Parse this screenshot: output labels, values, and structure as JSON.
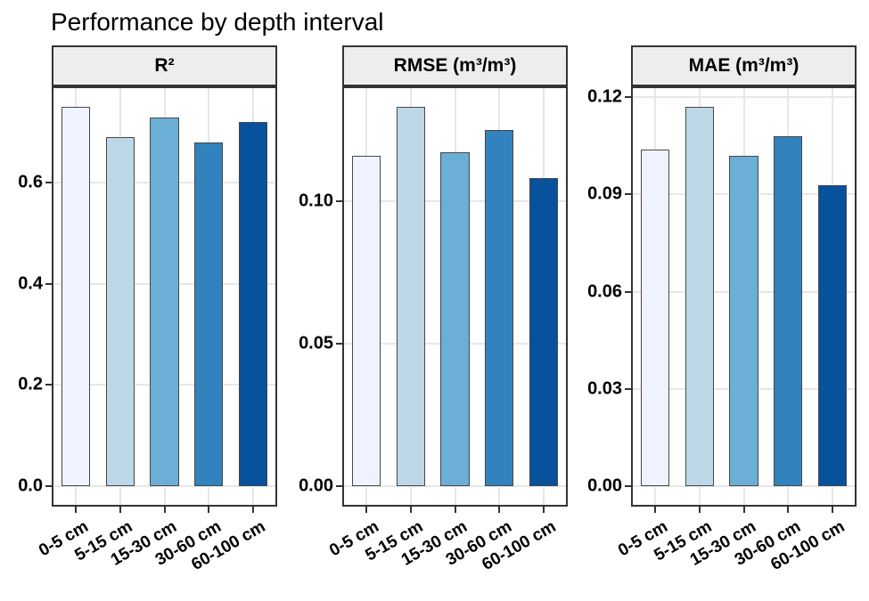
{
  "chart_data": {
    "type": "bar",
    "title": "Performance by depth interval",
    "categories": [
      "0-5 cm",
      "5-15 cm",
      "15-30 cm",
      "30-60 cm",
      "60-100 cm"
    ],
    "facets": [
      {
        "label": "R²",
        "values": [
          0.75,
          0.69,
          0.73,
          0.68,
          0.72
        ],
        "yticks": [
          0.0,
          0.2,
          0.4,
          0.6
        ],
        "ytick_labels": [
          "0.0",
          "0.2",
          "0.4",
          "0.6"
        ],
        "ylim": [
          -0.0375,
          0.7875
        ]
      },
      {
        "label": "RMSE (m³/m³)",
        "values": [
          0.116,
          0.133,
          0.117,
          0.125,
          0.108
        ],
        "yticks": [
          0.0,
          0.05,
          0.1
        ],
        "ytick_labels": [
          "0.00",
          "0.05",
          "0.10"
        ],
        "ylim": [
          -0.00665,
          0.13965
        ]
      },
      {
        "label": "MAE (m³/m³)",
        "values": [
          0.104,
          0.117,
          0.102,
          0.108,
          0.093
        ],
        "yticks": [
          0.0,
          0.03,
          0.06,
          0.09,
          0.12
        ],
        "ytick_labels": [
          "0.00",
          "0.03",
          "0.06",
          "0.09",
          "0.12"
        ],
        "ylim": [
          -0.00585,
          0.12285
        ]
      }
    ],
    "bar_colors": [
      "#EFF3FF",
      "#BDD7E7",
      "#6BAED6",
      "#3182BD",
      "#08519C"
    ],
    "bar_border_color": "#474747",
    "grid": true,
    "gridline_color": "#e7e7e7",
    "legend": false,
    "bar_width_fraction": 0.65
  }
}
